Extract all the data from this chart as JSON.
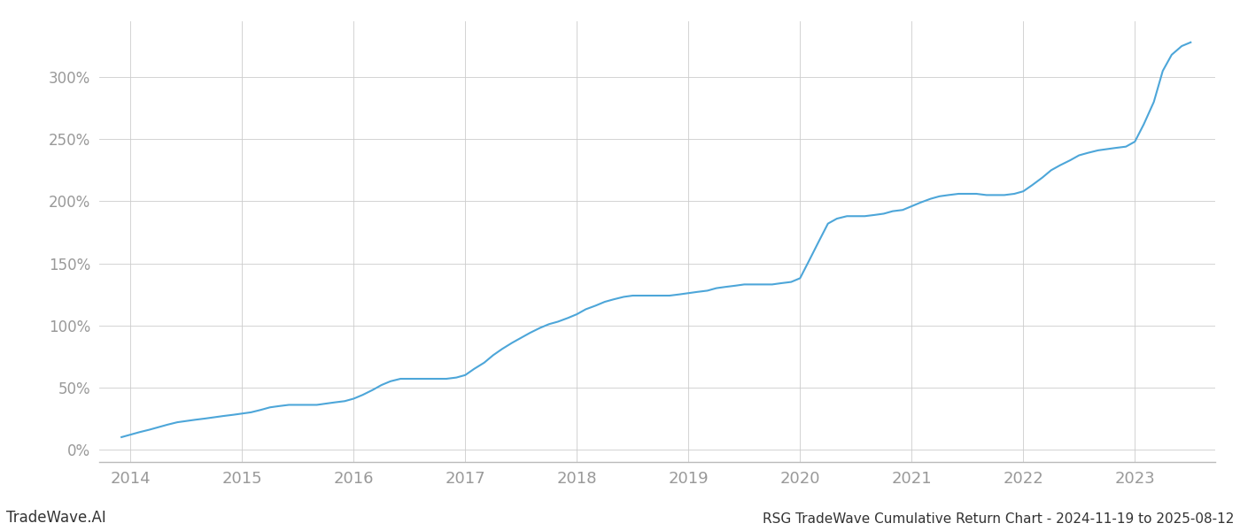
{
  "title": "RSG TradeWave Cumulative Return Chart - 2024-11-19 to 2025-08-12",
  "watermark": "TradeWave.AI",
  "line_color": "#4da6d9",
  "line_width": 1.5,
  "background_color": "#ffffff",
  "grid_color": "#cccccc",
  "x_tick_color": "#999999",
  "y_tick_color": "#999999",
  "x_years": [
    2014,
    2015,
    2016,
    2017,
    2018,
    2019,
    2020,
    2021,
    2022,
    2023
  ],
  "y_ticks": [
    0,
    50,
    100,
    150,
    200,
    250,
    300
  ],
  "xlim_start": 2013.72,
  "xlim_end": 2023.72,
  "ylim_min": -10,
  "ylim_max": 345,
  "data_x": [
    2013.92,
    2014.0,
    2014.08,
    2014.17,
    2014.25,
    2014.33,
    2014.42,
    2014.5,
    2014.58,
    2014.67,
    2014.75,
    2014.83,
    2014.92,
    2015.0,
    2015.08,
    2015.17,
    2015.25,
    2015.33,
    2015.42,
    2015.5,
    2015.58,
    2015.67,
    2015.75,
    2015.83,
    2015.92,
    2016.0,
    2016.08,
    2016.17,
    2016.25,
    2016.33,
    2016.42,
    2016.5,
    2016.58,
    2016.67,
    2016.75,
    2016.83,
    2016.92,
    2017.0,
    2017.08,
    2017.17,
    2017.25,
    2017.33,
    2017.42,
    2017.5,
    2017.58,
    2017.67,
    2017.75,
    2017.83,
    2017.92,
    2018.0,
    2018.08,
    2018.17,
    2018.25,
    2018.33,
    2018.42,
    2018.5,
    2018.58,
    2018.67,
    2018.75,
    2018.83,
    2018.92,
    2019.0,
    2019.08,
    2019.17,
    2019.25,
    2019.33,
    2019.42,
    2019.5,
    2019.58,
    2019.67,
    2019.75,
    2019.83,
    2019.92,
    2020.0,
    2020.08,
    2020.17,
    2020.25,
    2020.33,
    2020.42,
    2020.5,
    2020.58,
    2020.67,
    2020.75,
    2020.83,
    2020.92,
    2021.0,
    2021.08,
    2021.17,
    2021.25,
    2021.33,
    2021.42,
    2021.5,
    2021.58,
    2021.67,
    2021.75,
    2021.83,
    2021.92,
    2022.0,
    2022.08,
    2022.17,
    2022.25,
    2022.33,
    2022.42,
    2022.5,
    2022.58,
    2022.67,
    2022.75,
    2022.83,
    2022.92,
    2023.0,
    2023.08,
    2023.17,
    2023.25,
    2023.33,
    2023.42,
    2023.5
  ],
  "data_y": [
    10,
    12,
    14,
    16,
    18,
    20,
    22,
    23,
    24,
    25,
    26,
    27,
    28,
    29,
    30,
    32,
    34,
    35,
    36,
    36,
    36,
    36,
    37,
    38,
    39,
    41,
    44,
    48,
    52,
    55,
    57,
    57,
    57,
    57,
    57,
    57,
    58,
    60,
    65,
    70,
    76,
    81,
    86,
    90,
    94,
    98,
    101,
    103,
    106,
    109,
    113,
    116,
    119,
    121,
    123,
    124,
    124,
    124,
    124,
    124,
    125,
    126,
    127,
    128,
    130,
    131,
    132,
    133,
    133,
    133,
    133,
    134,
    135,
    138,
    152,
    168,
    182,
    186,
    188,
    188,
    188,
    189,
    190,
    192,
    193,
    196,
    199,
    202,
    204,
    205,
    206,
    206,
    206,
    205,
    205,
    205,
    206,
    208,
    213,
    219,
    225,
    229,
    233,
    237,
    239,
    241,
    242,
    243,
    244,
    248,
    262,
    280,
    305,
    318,
    325,
    328
  ]
}
